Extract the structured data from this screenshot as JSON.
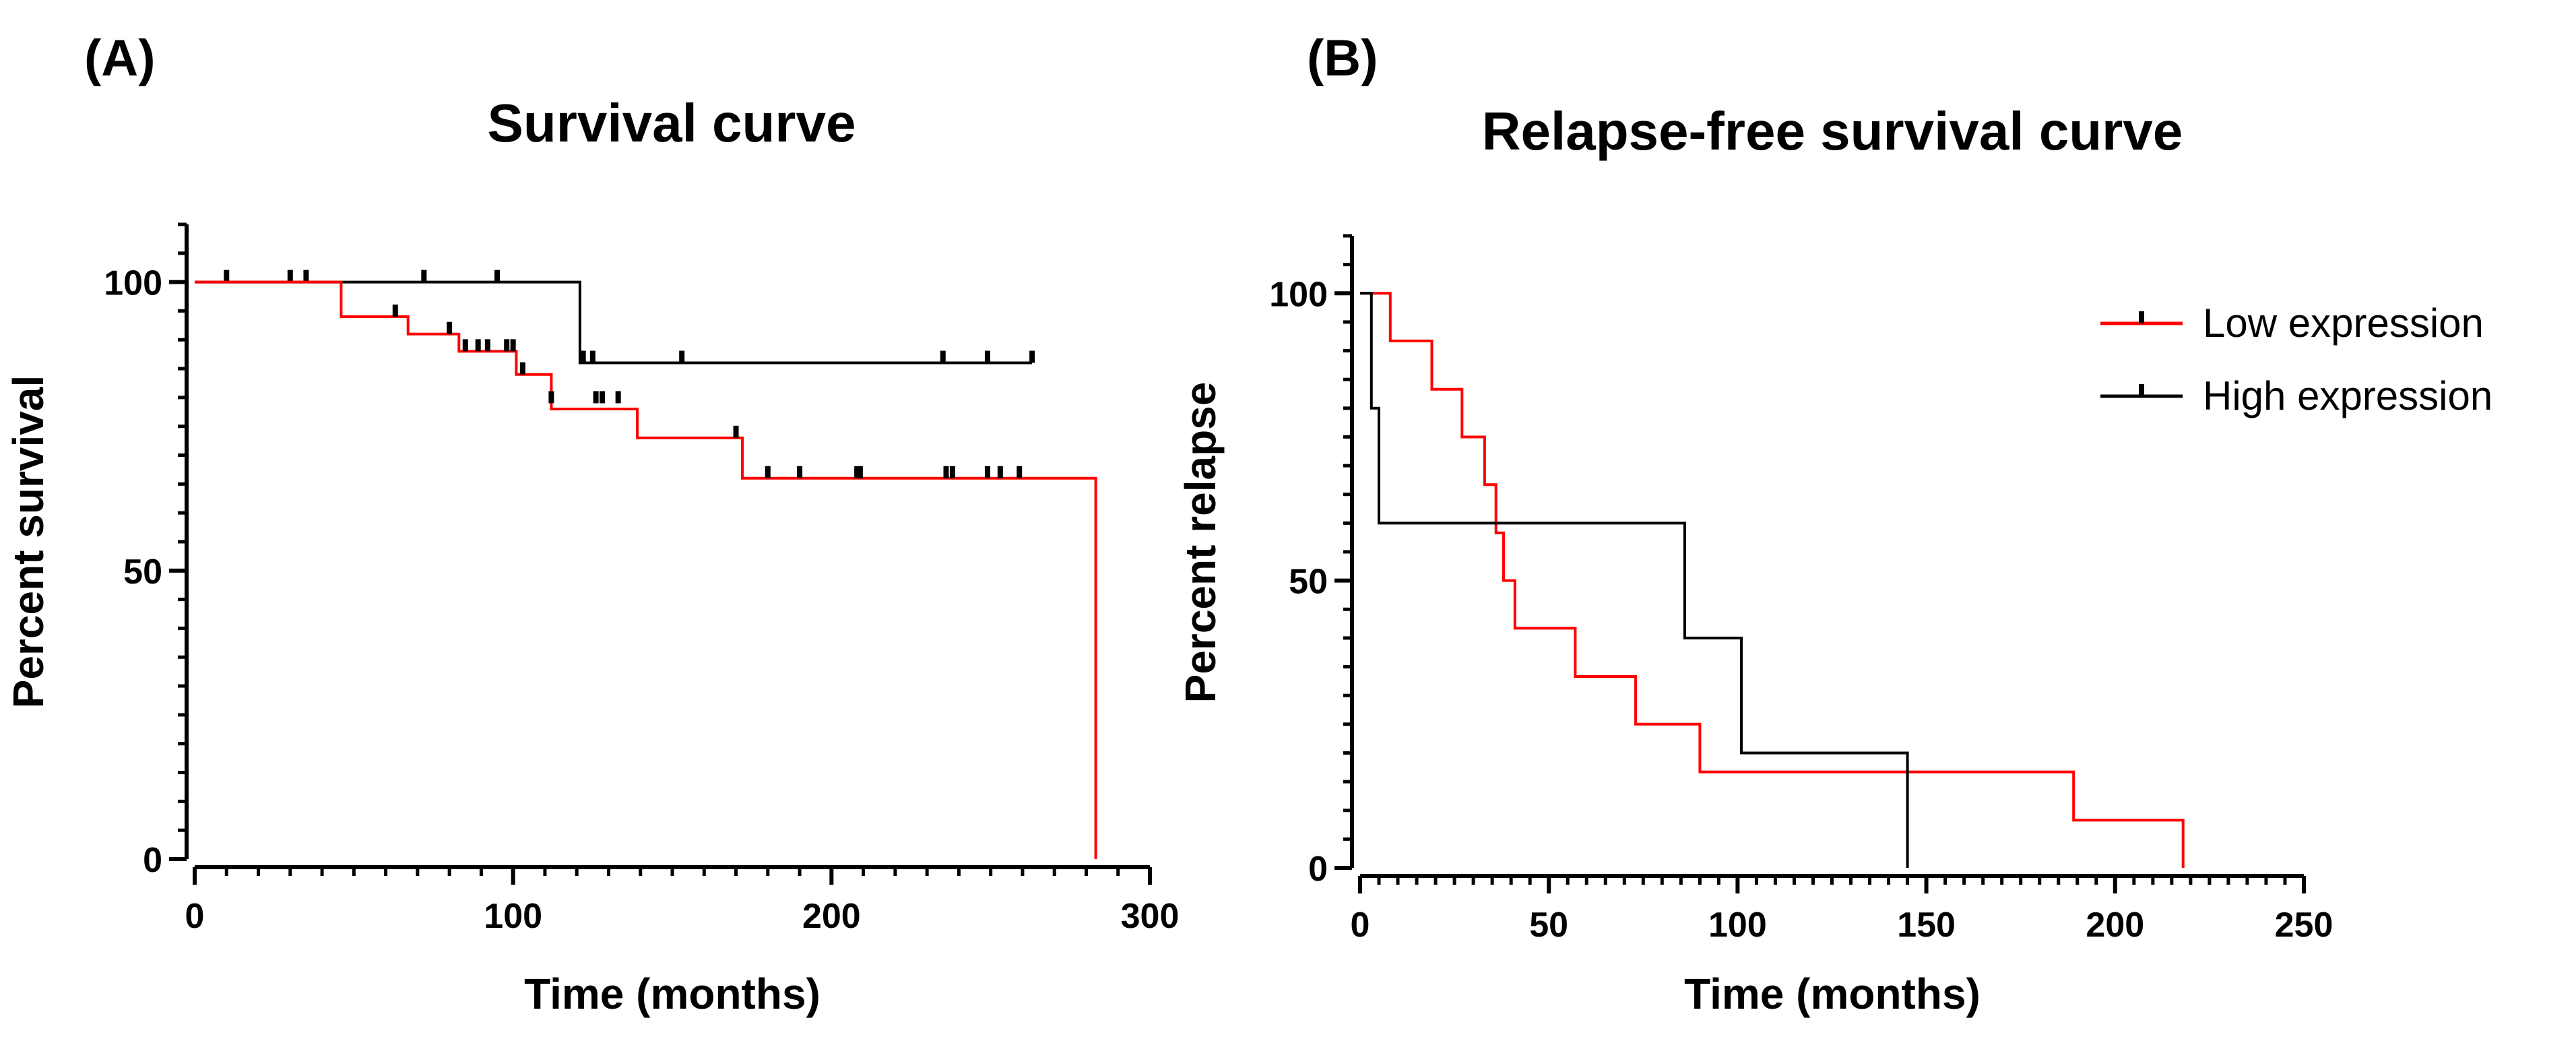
{
  "chart_data": [
    {
      "type": "line",
      "subtype": "kaplan-meier",
      "panel_label": "(A)",
      "title": "Survival curve",
      "xlabel": "Time (months)",
      "ylabel": "Percent survival",
      "xlim": [
        0,
        300
      ],
      "ylim": [
        0,
        110
      ],
      "xticks": [
        0,
        100,
        200,
        300
      ],
      "yticks": [
        0,
        50,
        100
      ],
      "x_minor_step": 10,
      "y_minor_step": 5,
      "series": [
        {
          "name": "High expression",
          "color": "#000000",
          "steps": [
            [
              0,
              100
            ],
            [
              121,
              100
            ],
            [
              121,
              86
            ],
            [
              263,
              86
            ]
          ],
          "censored": [
            [
              10,
              100
            ],
            [
              30,
              100
            ],
            [
              35,
              100
            ],
            [
              72,
              100
            ],
            [
              95,
              100
            ],
            [
              122,
              86
            ],
            [
              125,
              86
            ],
            [
              153,
              86
            ],
            [
              235,
              86
            ],
            [
              249,
              86
            ],
            [
              263,
              86
            ]
          ]
        },
        {
          "name": "Low expression",
          "color": "#ff0000",
          "steps": [
            [
              0,
              100
            ],
            [
              46,
              100
            ],
            [
              46,
              94
            ],
            [
              67,
              94
            ],
            [
              67,
              91
            ],
            [
              83,
              91
            ],
            [
              83,
              88
            ],
            [
              101,
              88
            ],
            [
              101,
              84
            ],
            [
              112,
              84
            ],
            [
              112,
              78
            ],
            [
              139,
              78
            ],
            [
              139,
              73
            ],
            [
              172,
              73
            ],
            [
              172,
              66
            ],
            [
              283,
              66
            ],
            [
              283,
              0
            ]
          ],
          "censored": [
            [
              63,
              94
            ],
            [
              80,
              91
            ],
            [
              85,
              88
            ],
            [
              89,
              88
            ],
            [
              92,
              88
            ],
            [
              98,
              88
            ],
            [
              100,
              88
            ],
            [
              103,
              84
            ],
            [
              112,
              79
            ],
            [
              126,
              79
            ],
            [
              128,
              79
            ],
            [
              133,
              79
            ],
            [
              170,
              73
            ],
            [
              180,
              66
            ],
            [
              190,
              66
            ],
            [
              208,
              66
            ],
            [
              209,
              66
            ],
            [
              236,
              66
            ],
            [
              238,
              66
            ],
            [
              249,
              66
            ],
            [
              253,
              66
            ],
            [
              259,
              66
            ]
          ]
        }
      ]
    },
    {
      "type": "line",
      "subtype": "kaplan-meier",
      "panel_label": "(B)",
      "title": "Relapse-free survival curve",
      "xlabel": "Time (months)",
      "ylabel": "Percent relapse",
      "xlim": [
        0,
        250
      ],
      "ylim": [
        0,
        110
      ],
      "xticks": [
        0,
        50,
        100,
        150,
        200,
        250
      ],
      "yticks": [
        0,
        50,
        100
      ],
      "x_minor_step": 5,
      "y_minor_step": 5,
      "legend": {
        "placement": "top-right",
        "entries": [
          "Low expression",
          "High expression"
        ]
      },
      "series": [
        {
          "name": "Low expression",
          "color": "#ff0000",
          "steps": [
            [
              0,
              100
            ],
            [
              8,
              100
            ],
            [
              8,
              91.7
            ],
            [
              19,
              91.7
            ],
            [
              19,
              83.3
            ],
            [
              27,
              83.3
            ],
            [
              27,
              75
            ],
            [
              33,
              75
            ],
            [
              33,
              66.7
            ],
            [
              36,
              66.7
            ],
            [
              36,
              58.3
            ],
            [
              38,
              58.3
            ],
            [
              38,
              50
            ],
            [
              41,
              50
            ],
            [
              41,
              41.7
            ],
            [
              57,
              41.7
            ],
            [
              57,
              33.3
            ],
            [
              73,
              33.3
            ],
            [
              73,
              25
            ],
            [
              90,
              25
            ],
            [
              90,
              16.7
            ],
            [
              189,
              16.7
            ],
            [
              189,
              8.3
            ],
            [
              218,
              8.3
            ],
            [
              218,
              0
            ]
          ],
          "censored": []
        },
        {
          "name": "High expression",
          "color": "#000000",
          "steps": [
            [
              0,
              100
            ],
            [
              3,
              100
            ],
            [
              3,
              80
            ],
            [
              5,
              80
            ],
            [
              5,
              60
            ],
            [
              86,
              60
            ],
            [
              86,
              40
            ],
            [
              101,
              40
            ],
            [
              101,
              20
            ],
            [
              145,
              20
            ],
            [
              145,
              0
            ]
          ],
          "censored": []
        }
      ]
    }
  ]
}
